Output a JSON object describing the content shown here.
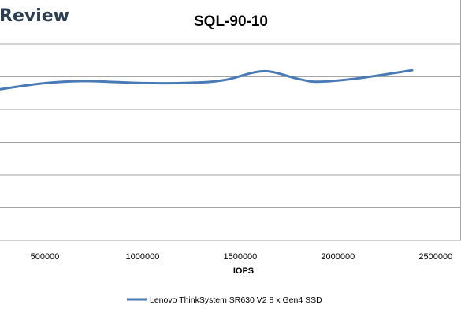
{
  "brand": {
    "text": "Review"
  },
  "colors": {
    "series": "#4a7ab5",
    "gridline": "#a6a6a6",
    "brand": "#2d3e50"
  },
  "chart_data": {
    "type": "line",
    "title": "SQL-90-10",
    "xlabel": "IOPS",
    "ylabel": "",
    "xlim": [
      270000,
      2630000
    ],
    "ylim": [
      0,
      6
    ],
    "xticks": [
      500000,
      1000000,
      1500000,
      2000000,
      2500000
    ],
    "xtick_labels": [
      "500000",
      "1000000",
      "1500000",
      "2000000",
      "2500000"
    ],
    "grid": true,
    "legend_position": "bottom",
    "series": [
      {
        "name": "Lenovo ThinkSystem SR630 V2 8 x Gen4 SSD",
        "x": [
          270000,
          490000,
          700000,
          1000000,
          1250000,
          1420000,
          1620000,
          1800000,
          1900000,
          2100000,
          2380000
        ],
        "y": [
          4.62,
          4.8,
          4.87,
          4.81,
          4.82,
          4.9,
          5.17,
          4.93,
          4.85,
          4.95,
          5.2
        ]
      }
    ]
  }
}
